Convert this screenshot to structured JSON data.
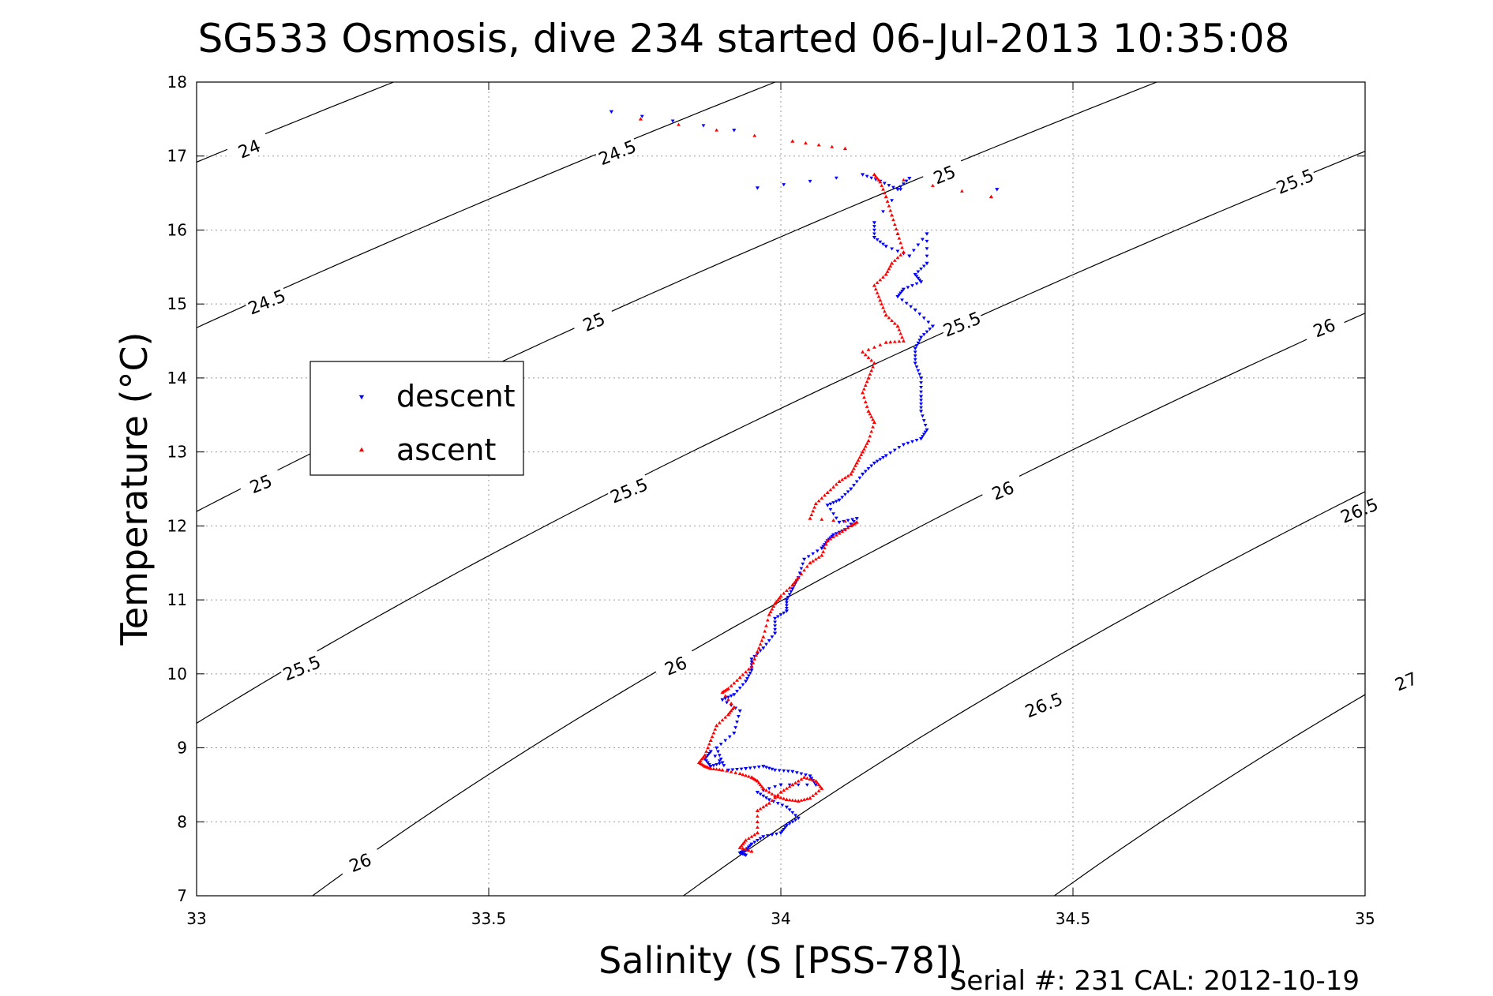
{
  "chart_data": {
    "type": "scatter",
    "title": "SG533 Osmosis, dive 234 started 06-Jul-2013 10:35:08",
    "xlabel": "Salinity (S [PSS-78])",
    "ylabel": "Temperature (°C)",
    "xlim": [
      33,
      35
    ],
    "ylim": [
      7,
      18
    ],
    "xticks": [
      "33",
      "33.5",
      "34",
      "34.5",
      "35"
    ],
    "yticks": [
      "7",
      "8",
      "9",
      "10",
      "11",
      "12",
      "13",
      "14",
      "15",
      "16",
      "17",
      "18"
    ],
    "grid": true,
    "legend_position": "center-left",
    "footer": "Serial #: 231  CAL: 2012-10-19",
    "contour_levels": [
      24,
      24.5,
      25,
      25.5,
      26,
      26.5,
      27
    ],
    "contour_labels": [
      {
        "text": "24",
        "s": 33.09,
        "t": 17.1
      },
      {
        "text": "24.5",
        "s": 33.72,
        "t": 17.05
      },
      {
        "text": "24.5",
        "s": 33.12,
        "t": 15.03
      },
      {
        "text": "25",
        "s": 34.28,
        "t": 16.75
      },
      {
        "text": "25",
        "s": 33.68,
        "t": 14.76
      },
      {
        "text": "25",
        "s": 33.11,
        "t": 12.57
      },
      {
        "text": "25.5",
        "s": 34.88,
        "t": 16.66
      },
      {
        "text": "25.5",
        "s": 34.31,
        "t": 14.73
      },
      {
        "text": "25.5",
        "s": 33.74,
        "t": 12.48
      },
      {
        "text": "25.5",
        "s": 33.18,
        "t": 10.08
      },
      {
        "text": "26",
        "s": 34.93,
        "t": 14.68
      },
      {
        "text": "26",
        "s": 34.38,
        "t": 12.48
      },
      {
        "text": "26",
        "s": 33.82,
        "t": 10.11
      },
      {
        "text": "26",
        "s": 33.28,
        "t": 7.45
      },
      {
        "text": "26.5",
        "s": 34.99,
        "t": 12.21
      },
      {
        "text": "26.5",
        "s": 34.45,
        "t": 9.58
      },
      {
        "text": "27",
        "s": 35.07,
        "t": 9.9
      }
    ],
    "series": [
      {
        "name": "descent",
        "color": "#0000ff",
        "marker": "triangle-down",
        "x": [
          33.71,
          33.92,
          33.96,
          34.14,
          34.17,
          34.2,
          34.22,
          34.16,
          34.16,
          34.18,
          34.22,
          34.25,
          34.25,
          34.23,
          34.24,
          34.21,
          34.2,
          34.23,
          34.26,
          34.24,
          34.23,
          34.23,
          34.24,
          34.24,
          34.24,
          34.25,
          34.24,
          34.21,
          34.18,
          34.16,
          34.14,
          34.12,
          34.1,
          34.08,
          34.1,
          34.13,
          34.11,
          34.09,
          34.08,
          34.07,
          34.04,
          34.03,
          34.02,
          34.01,
          34.01,
          33.99,
          33.99,
          33.97,
          33.95,
          33.95,
          33.94,
          33.92,
          33.9,
          33.93,
          33.92,
          33.89,
          33.9,
          33.88,
          33.87,
          33.88,
          33.91,
          33.94,
          33.97,
          33.99,
          34.02,
          34.05,
          34.06,
          34.0,
          33.96,
          33.98,
          34.01,
          34.03,
          34.01,
          34.0,
          33.97,
          33.95,
          33.94,
          33.93,
          33.94,
          34.37
        ],
        "y": [
          17.6,
          17.35,
          16.57,
          16.75,
          16.66,
          16.55,
          16.7,
          16.1,
          15.9,
          15.78,
          15.65,
          15.95,
          15.55,
          15.4,
          15.3,
          15.2,
          15.1,
          14.92,
          14.7,
          14.55,
          14.4,
          14.2,
          14.0,
          13.75,
          13.55,
          13.3,
          13.18,
          13.1,
          12.95,
          12.85,
          12.7,
          12.5,
          12.35,
          12.28,
          12.05,
          12.1,
          11.95,
          11.88,
          11.8,
          11.7,
          11.55,
          11.3,
          11.15,
          11.0,
          10.85,
          10.75,
          10.55,
          10.35,
          10.2,
          10.05,
          9.9,
          9.72,
          9.65,
          9.5,
          9.2,
          9.0,
          8.8,
          8.75,
          8.85,
          8.95,
          8.7,
          8.72,
          8.75,
          8.7,
          8.68,
          8.62,
          8.5,
          8.5,
          8.4,
          8.3,
          8.2,
          8.05,
          7.95,
          7.85,
          7.8,
          7.7,
          7.62,
          7.58,
          7.55,
          16.55
        ]
      },
      {
        "name": "ascent",
        "color": "#ff0000",
        "marker": "triangle-up",
        "x": [
          33.76,
          34.02,
          34.11,
          34.36,
          34.16,
          34.17,
          34.18,
          34.19,
          34.2,
          34.21,
          34.19,
          34.18,
          34.16,
          34.17,
          34.18,
          34.2,
          34.21,
          34.18,
          34.14,
          34.16,
          34.15,
          34.14,
          34.15,
          34.16,
          34.15,
          34.14,
          34.13,
          34.12,
          34.1,
          34.08,
          34.06,
          34.05,
          34.13,
          34.12,
          34.1,
          34.08,
          34.07,
          34.05,
          34.03,
          34.02,
          34.0,
          33.99,
          33.98,
          33.97,
          33.96,
          33.95,
          33.93,
          33.91,
          33.9,
          33.92,
          33.91,
          33.89,
          33.88,
          33.87,
          33.86,
          33.87,
          33.88,
          33.9,
          33.93,
          33.95,
          33.96,
          33.97,
          33.99,
          34.01,
          34.03,
          34.05,
          34.07,
          34.06,
          34.04,
          34.02,
          34.0,
          33.98,
          33.96,
          33.96,
          33.94,
          33.93,
          33.95
        ],
        "y": [
          17.5,
          17.2,
          17.1,
          16.45,
          16.75,
          16.65,
          16.45,
          16.2,
          15.95,
          15.7,
          15.55,
          15.4,
          15.25,
          15.05,
          14.85,
          14.7,
          14.5,
          14.48,
          14.35,
          14.2,
          14.0,
          13.8,
          13.55,
          13.4,
          13.15,
          13.0,
          12.85,
          12.7,
          12.6,
          12.45,
          12.3,
          12.1,
          12.05,
          12.0,
          11.9,
          11.8,
          11.6,
          11.5,
          11.3,
          11.2,
          11.05,
          10.95,
          10.8,
          10.5,
          10.3,
          10.1,
          9.95,
          9.8,
          9.75,
          9.55,
          9.45,
          9.3,
          9.1,
          8.9,
          8.8,
          8.75,
          8.72,
          8.7,
          8.65,
          8.6,
          8.55,
          8.45,
          8.35,
          8.3,
          8.28,
          8.32,
          8.45,
          8.55,
          8.6,
          8.5,
          8.4,
          8.25,
          8.15,
          7.85,
          7.75,
          7.65,
          7.6
        ]
      }
    ]
  }
}
